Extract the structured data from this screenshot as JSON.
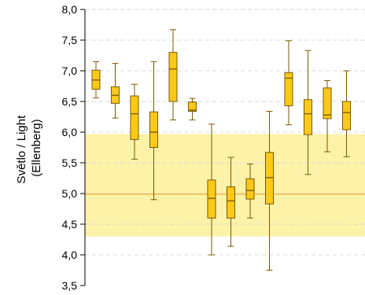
{
  "chart_data": {
    "type": "boxplot",
    "ylabel_lines": [
      "Světlo / Light",
      "(Ellenberg)"
    ],
    "ylim": [
      3.5,
      8.0
    ],
    "yticks": [
      "3,5",
      "4,0",
      "4,5",
      "5,0",
      "5,5",
      "6,0",
      "6,5",
      "7,0",
      "7,5",
      "8,0"
    ],
    "ytick_values": [
      3.5,
      4.0,
      4.5,
      5.0,
      5.5,
      6.0,
      6.5,
      7.0,
      7.5,
      8.0
    ],
    "grid": "horizontal-dashed",
    "reference_band": [
      4.3,
      5.97
    ],
    "reference_line": 4.99,
    "colors": {
      "box_fill": "#fcc919",
      "box_stroke": "#7a5a00",
      "median": "#8a6200",
      "band": "#fcf2a8",
      "reference_line": "#f5b940",
      "grid": "#d8d8d8",
      "axis": "#000000"
    },
    "boxes": [
      {
        "min": 6.56,
        "q1": 6.7,
        "median": 6.85,
        "q3": 7.01,
        "max": 7.15
      },
      {
        "min": 6.23,
        "q1": 6.47,
        "median": 6.6,
        "q3": 6.74,
        "max": 7.12
      },
      {
        "min": 5.56,
        "q1": 5.88,
        "median": 6.3,
        "q3": 6.59,
        "max": 6.78
      },
      {
        "min": 4.9,
        "q1": 5.75,
        "median": 6.0,
        "q3": 6.33,
        "max": 7.15
      },
      {
        "min": 6.2,
        "q1": 6.5,
        "median": 7.03,
        "q3": 7.3,
        "max": 7.67
      },
      {
        "min": 6.2,
        "q1": 6.34,
        "median": 6.36,
        "q3": 6.49,
        "max": 6.55
      },
      {
        "min": 4.0,
        "q1": 4.6,
        "median": 4.92,
        "q3": 5.22,
        "max": 6.13
      },
      {
        "min": 4.14,
        "q1": 4.6,
        "median": 4.88,
        "q3": 5.11,
        "max": 5.59
      },
      {
        "min": 4.6,
        "q1": 4.91,
        "median": 5.05,
        "q3": 5.24,
        "max": 5.48
      },
      {
        "min": 3.75,
        "q1": 4.83,
        "median": 5.26,
        "q3": 5.67,
        "max": 6.34
      },
      {
        "min": 6.12,
        "q1": 6.43,
        "median": 6.88,
        "q3": 6.97,
        "max": 7.49
      },
      {
        "min": 5.31,
        "q1": 5.96,
        "median": 6.3,
        "q3": 6.53,
        "max": 7.33
      },
      {
        "min": 5.68,
        "q1": 6.22,
        "median": 6.28,
        "q3": 6.72,
        "max": 6.84
      },
      {
        "min": 5.6,
        "q1": 6.04,
        "median": 6.32,
        "q3": 6.5,
        "max": 7.0
      }
    ]
  }
}
